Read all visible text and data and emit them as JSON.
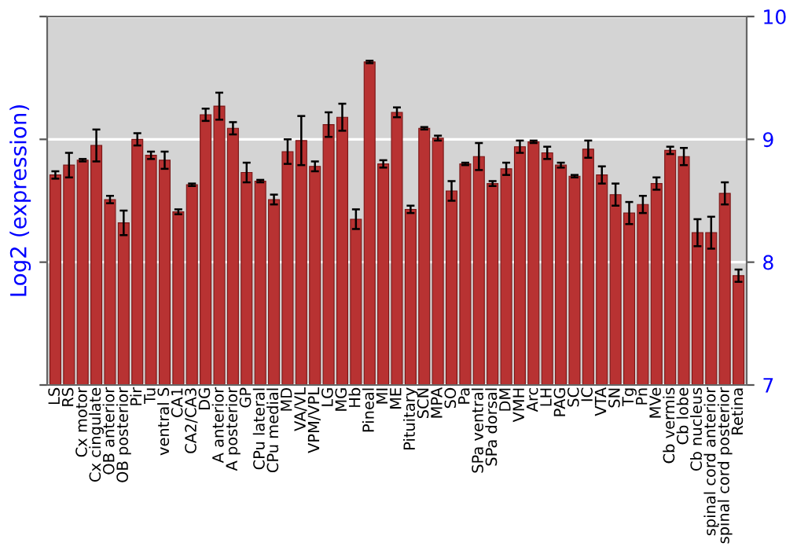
{
  "chart_data": {
    "type": "bar",
    "ylabel": "Log2 (expression)",
    "categories": [
      "LS",
      "RS",
      "Cx motor",
      "Cx cingulate",
      "OB anterior",
      "OB posterior",
      "Pir",
      "Tu",
      "ventral S",
      "CA1",
      "CA2/CA3",
      "DG",
      "A anterior",
      "A posterior",
      "GP",
      "CPu lateral",
      "CPu medial",
      "MD",
      "VA/VL",
      "VPM/VPL",
      "LG",
      "MG",
      "Hb",
      "Pineal",
      "MI",
      "ME",
      "Pituitary",
      "SCN",
      "MPA",
      "SO",
      "Pa",
      "SPa ventral",
      "SPa dorsal",
      "DM",
      "VMH",
      "Arc",
      "LH",
      "PAG",
      "SC",
      "IC",
      "VTA",
      "SN",
      "Tg",
      "Pn",
      "MVe",
      "Cb vermis",
      "Cb lobe",
      "Cb nucleus",
      "spinal cord anterior",
      "spinal cord posterior",
      "Retina"
    ],
    "values": [
      8.71,
      8.79,
      8.83,
      8.95,
      8.51,
      8.32,
      9.0,
      8.87,
      8.83,
      8.41,
      8.63,
      9.2,
      9.27,
      9.09,
      8.73,
      8.66,
      8.51,
      8.9,
      8.99,
      8.78,
      9.12,
      9.18,
      8.35,
      9.63,
      8.8,
      9.22,
      8.43,
      9.09,
      9.01,
      8.58,
      8.8,
      8.86,
      8.64,
      8.76,
      8.94,
      8.98,
      8.89,
      8.79,
      8.7,
      8.92,
      8.71,
      8.55,
      8.4,
      8.47,
      8.64,
      8.91,
      8.86,
      8.24,
      8.24,
      8.56,
      7.89
    ],
    "errors": [
      0.03,
      0.1,
      0.01,
      0.13,
      0.03,
      0.1,
      0.05,
      0.03,
      0.07,
      0.02,
      0.01,
      0.05,
      0.11,
      0.05,
      0.08,
      0.01,
      0.04,
      0.1,
      0.2,
      0.04,
      0.1,
      0.11,
      0.08,
      0.01,
      0.03,
      0.04,
      0.03,
      0.01,
      0.02,
      0.08,
      0.01,
      0.11,
      0.02,
      0.05,
      0.05,
      0.01,
      0.05,
      0.02,
      0.01,
      0.07,
      0.07,
      0.09,
      0.09,
      0.07,
      0.05,
      0.03,
      0.07,
      0.11,
      0.13,
      0.09,
      0.05
    ],
    "color": "#b83232",
    "ylim": [
      7,
      10
    ],
    "yticks": [
      7,
      8,
      9,
      10
    ],
    "grid": "y"
  }
}
